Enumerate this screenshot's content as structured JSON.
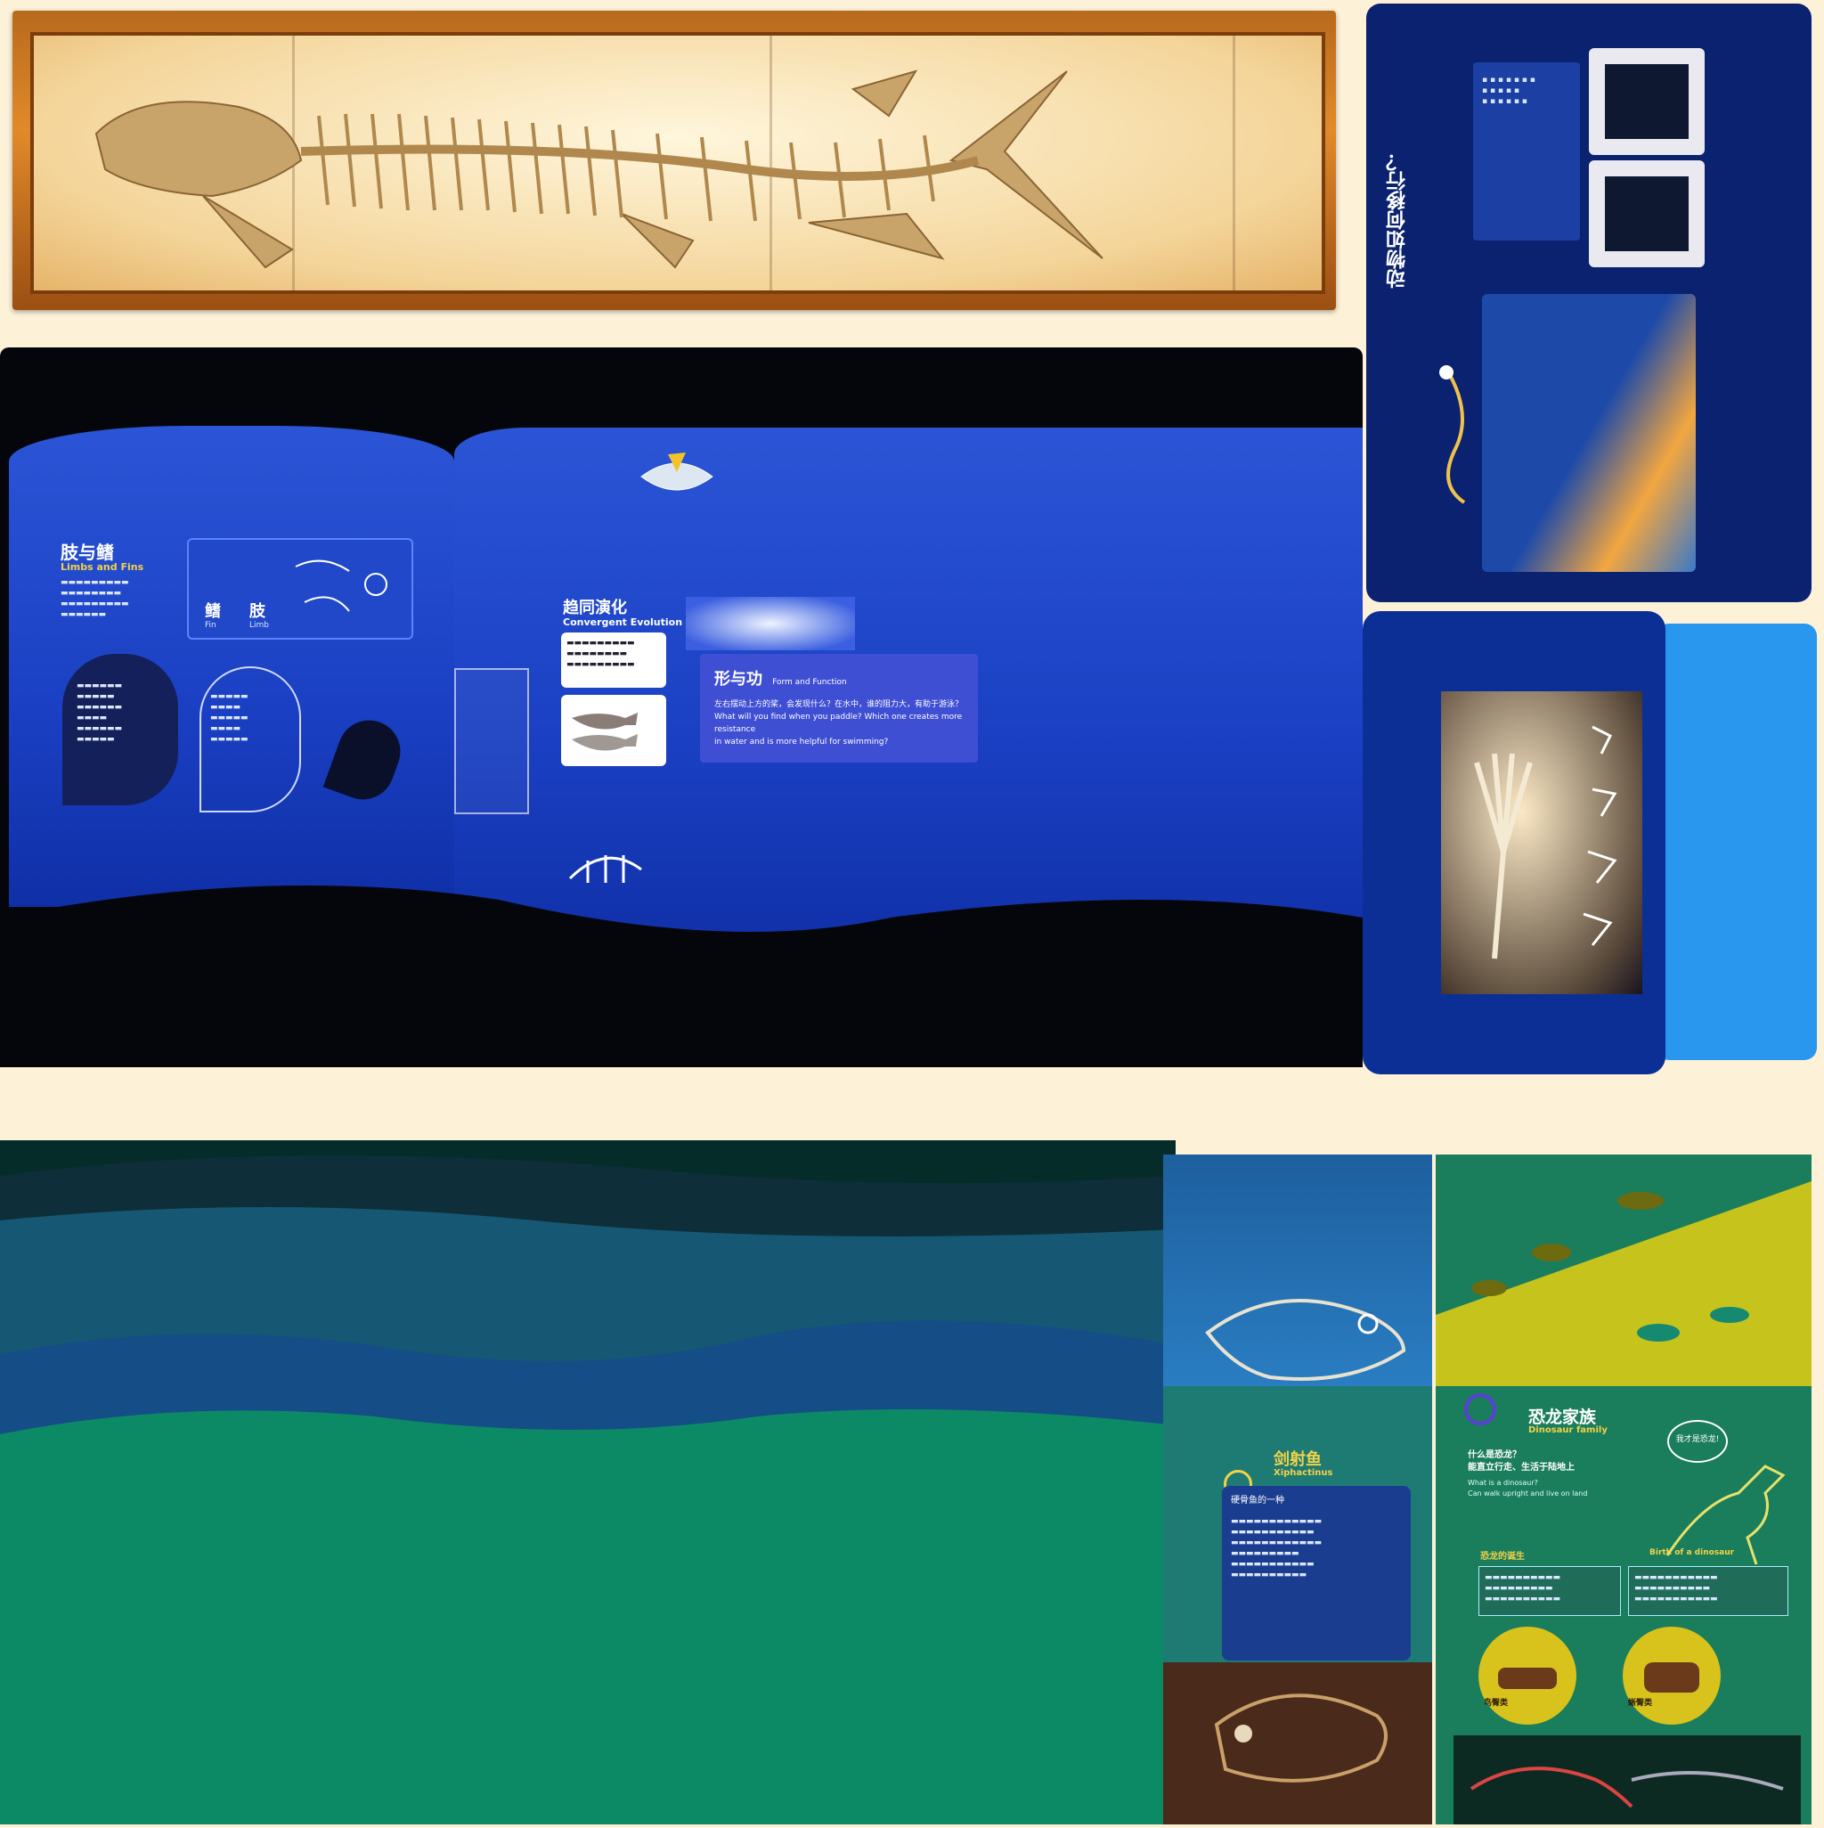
{
  "fossil_panel": {
    "label": ""
  },
  "right_panels": {
    "vertical_title": "动物如何移行？"
  },
  "limbs_fins": {
    "title_cn": "肢与鳍",
    "title_en": "Limbs and Fins",
    "label_fin": "鳍",
    "label_fin_en": "Fin",
    "label_limb": "肢",
    "label_limb_en": "Limb"
  },
  "convergent": {
    "title_cn": "趋同演化",
    "title_en": "Convergent Evolution"
  },
  "form_function": {
    "title_cn": "形与功",
    "title_en": "Form and Function",
    "line_cn": "左右摆动上方的桨，会发现什么？在水中，谁的阻力大，有助于游泳？",
    "line_en1": "What will you find when you paddle? Which one creates more resistance",
    "line_en2": "in water and is more helpful for swimming?"
  },
  "xiphactinus": {
    "title_cn": "剑射鱼",
    "title_en": "Xiphactinus",
    "subtitle_cn": "硬骨鱼的一种"
  },
  "dino_family": {
    "title_cn": "恐龙家族",
    "title_en": "Dinosaur family",
    "question_cn1": "什么是恐龙？",
    "question_cn2": "能直立行走、生活于陆地上",
    "question_en1": "What is a dinosaur?",
    "question_en2": "Can walk upright and live on land",
    "bubble": "我才是恐龙!",
    "birth_cn": "恐龙的诞生",
    "birth_en": "Birth of a dinosaur",
    "hip_left": "鸟臀类",
    "hip_right": "蜥臀类"
  },
  "colors": {
    "cream": "#fdf1d8",
    "navy": "#0a2270",
    "exhibit_blue": "#1a3fc2",
    "teal": "#0c8a66",
    "light_blue": "#2a97ee"
  }
}
